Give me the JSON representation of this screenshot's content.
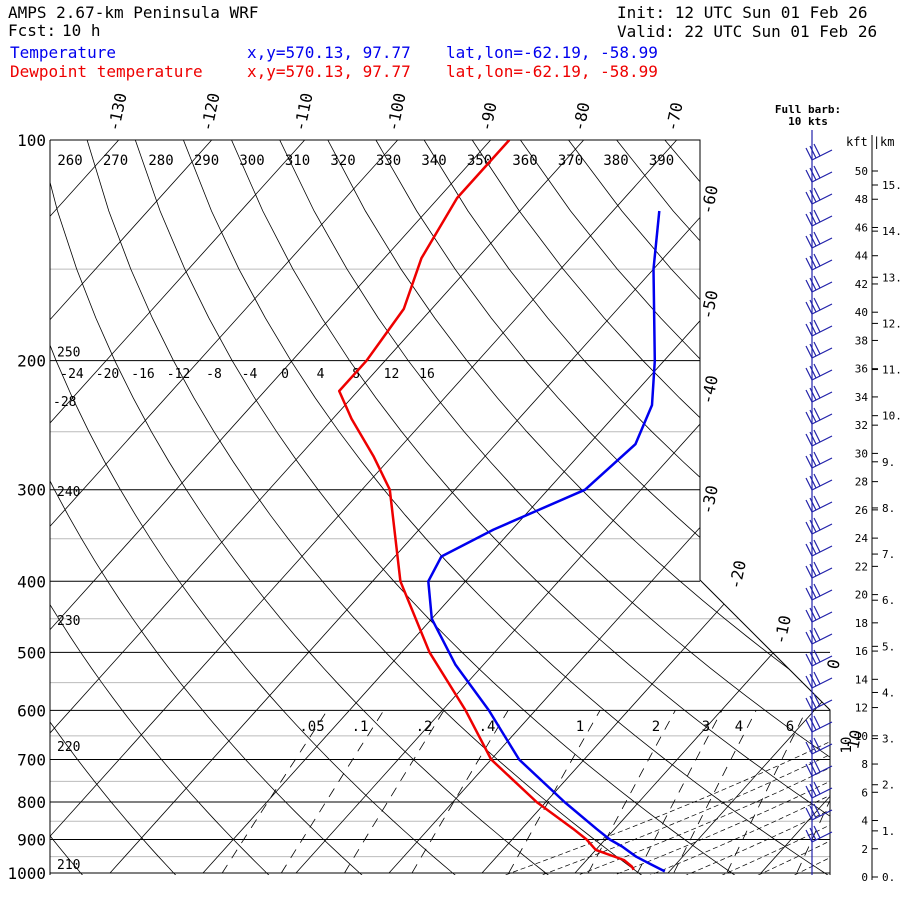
{
  "header": {
    "model": "AMPS 2.67-km Peninsula WRF",
    "fcst_label": "Fcst:",
    "fcst_value": "10 h",
    "init": "Init: 12 UTC Sun 01 Feb 26",
    "valid": "Valid: 22 UTC Sun 01 Feb 26",
    "temp_label": "Temperature",
    "temp_xy": "x,y=570.13, 97.77",
    "temp_latlon": "lat,lon=-62.19, -58.99",
    "dew_label": "Dewpoint temperature",
    "dew_xy": "x,y=570.13, 97.77",
    "dew_latlon": "lat,lon=-62.19, -58.99"
  },
  "colors": {
    "temperature": "#0000ee",
    "dewpoint": "#ee0000",
    "axes": "#000000",
    "grid": "#bbbbbb"
  },
  "chart_data": {
    "type": "line",
    "title": "AMPS 2.67-km Peninsula WRF skew-T",
    "pressure_levels": [
      100,
      200,
      300,
      400,
      500,
      600,
      700,
      800,
      900,
      1000
    ],
    "pressure_labels": [
      "100",
      "200",
      "300",
      "400",
      "500",
      "600",
      "700",
      "800",
      "900",
      "1000"
    ],
    "temp_ticks_top": [
      -130,
      -120,
      -110,
      -100,
      -90,
      -80,
      -70
    ],
    "temp_ticks_top_labels": [
      "-130",
      "-120",
      "-110",
      "-100",
      "-90",
      "-80",
      "-70"
    ],
    "temp_ticks_right": [
      -60,
      -50,
      -40,
      -30,
      -20,
      -10,
      0,
      10
    ],
    "temp_ticks_right_labels": [
      "-60",
      "-50",
      "-40",
      "-30",
      "-20",
      "-10",
      "0",
      "10"
    ],
    "theta_labels": [
      "260",
      "270",
      "280",
      "290",
      "300",
      "310",
      "320",
      "330",
      "340",
      "350",
      "360",
      "370",
      "380",
      "390"
    ],
    "theta_side_labels": [
      "250",
      "240",
      "230",
      "220",
      "210"
    ],
    "theta_side_pressures": [
      200,
      310,
      465,
      690,
      1000
    ],
    "theta_e_labels": [
      "-24",
      "-20",
      "-16",
      "-12",
      "-8",
      "-4",
      "0",
      "4",
      "8",
      "12",
      "16"
    ],
    "theta_e_side_label": "-28",
    "mixing_ratio_labels": [
      ".05",
      ".1",
      ".2",
      ".4",
      "1",
      "2",
      "3",
      "4",
      "6",
      "10"
    ],
    "kft_labels": [
      "50",
      "48",
      "46",
      "44",
      "42",
      "40",
      "38",
      "36",
      "34",
      "32",
      "30",
      "28",
      "26",
      "24",
      "22",
      "20",
      "18",
      "16",
      "14",
      "12",
      "10",
      "8",
      "6",
      "4",
      "2",
      "0"
    ],
    "kft_values": [
      50,
      48,
      46,
      44,
      42,
      40,
      38,
      36,
      34,
      32,
      30,
      28,
      26,
      24,
      22,
      20,
      18,
      16,
      14,
      12,
      10,
      8,
      6,
      4,
      2,
      0
    ],
    "km_labels": [
      "15.",
      "14.",
      "13.",
      "12.",
      "11.",
      "10.",
      "9.",
      "8.",
      "7.",
      "6.",
      "5.",
      "4.",
      "3.",
      "2.",
      "1.",
      "0."
    ],
    "km_values": [
      15,
      14,
      13,
      12,
      11,
      10,
      9,
      8,
      7,
      6,
      5,
      4,
      3,
      2,
      1,
      0
    ],
    "axis_titles": {
      "kft": "kft",
      "km": "km"
    },
    "barb_note": "Full barb: 10 kts",
    "series": [
      {
        "name": "Temperature",
        "pressure": [
          995,
          970,
          950,
          920,
          900,
          870,
          800,
          700,
          600,
          520,
          450,
          400,
          370,
          340,
          300,
          260,
          230,
          200,
          150,
          125
        ],
        "temperature": [
          -0.5,
          -3,
          -5,
          -7.5,
          -9.5,
          -12,
          -18,
          -27,
          -35,
          -43,
          -50,
          -54,
          -55,
          -52,
          -46,
          -45,
          -47,
          -51,
          -60,
          -65
        ]
      },
      {
        "name": "Dewpoint temperature",
        "pressure": [
          990,
          980,
          960,
          930,
          900,
          870,
          800,
          700,
          600,
          500,
          400,
          300,
          270,
          240,
          220,
          200,
          170,
          145,
          120,
          100
        ],
        "temperature": [
          -4,
          -4.5,
          -6,
          -10,
          -12,
          -14.5,
          -21,
          -30,
          -37.5,
          -47,
          -57,
          -67,
          -72,
          -78,
          -82,
          -82,
          -83,
          -86,
          -88,
          -88
        ]
      }
    ]
  }
}
